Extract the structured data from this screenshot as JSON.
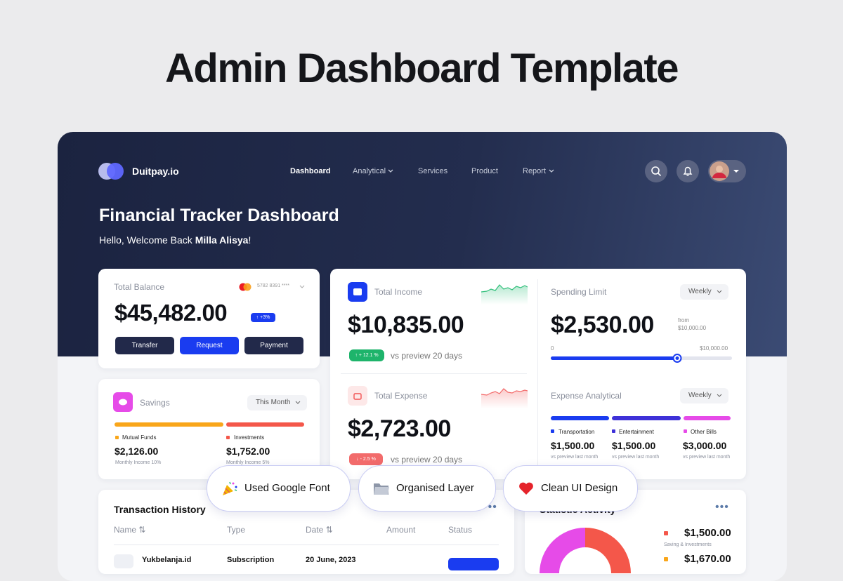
{
  "page_title": "Admin Dashboard Template",
  "navbar": {
    "brand": "Duitpay.io",
    "items": [
      "Dashboard",
      "Analytical",
      "Services",
      "Product",
      "Report"
    ]
  },
  "header": {
    "title": "Financial Tracker Dashboard",
    "greeting": "Hello, Welcome Back",
    "user_name": "Milla Alisya",
    "greeting_end": "!"
  },
  "balance": {
    "label": "Total Balance",
    "card_number": "5782 8391 ****",
    "amount": "$45,482.00",
    "change": "+3%",
    "buttons": [
      "Transfer",
      "Request",
      "Payment"
    ]
  },
  "savings": {
    "label": "Savings",
    "period": "This Month",
    "items": [
      {
        "name": "Mutual Funds",
        "amount": "$2,126.00",
        "note": "Monthly Income 10%"
      },
      {
        "name": "Investments",
        "amount": "$1,752.00",
        "note": "Monthly Income 5%"
      }
    ]
  },
  "income": {
    "label": "Total Income",
    "amount": "$10,835.00",
    "change": "+ 12.1 %",
    "comparison": "vs preview 20 days"
  },
  "expense": {
    "label": "Total Expense",
    "amount": "$2,723.00",
    "change": "- 2.5 %",
    "comparison": "vs preview 20 days"
  },
  "spending_limit": {
    "label": "Spending Limit",
    "period": "Weekly",
    "amount": "$2,530.00",
    "from_label": "from",
    "limit": "$10,000.00",
    "scale_min": "0",
    "scale_max": "$10,000.00"
  },
  "expense_analytical": {
    "label": "Expense Analytical",
    "period": "Weekly",
    "items": [
      {
        "name": "Transportation",
        "amount": "$1,500.00",
        "note": "vs preview last month"
      },
      {
        "name": "Entertainment",
        "amount": "$1,500.00",
        "note": "vs preview last month"
      },
      {
        "name": "Other Bills",
        "amount": "$3,000.00",
        "note": "vs preview last month"
      }
    ]
  },
  "transactions": {
    "title": "Transaction History",
    "columns": [
      "Name",
      "Type",
      "Date",
      "Amount",
      "Status"
    ],
    "rows": [
      [
        "Yukbelanja.id",
        "Subscription",
        "20 June, 2023"
      ]
    ]
  },
  "statistics": {
    "title": "Statistic Activity",
    "legend": [
      {
        "amount": "$1,500.00",
        "label": "Saving & Investments"
      },
      {
        "amount": "$1,670.00"
      }
    ]
  },
  "features": [
    "Used Google Font",
    "Organised Layer",
    "Clean UI Design"
  ]
}
